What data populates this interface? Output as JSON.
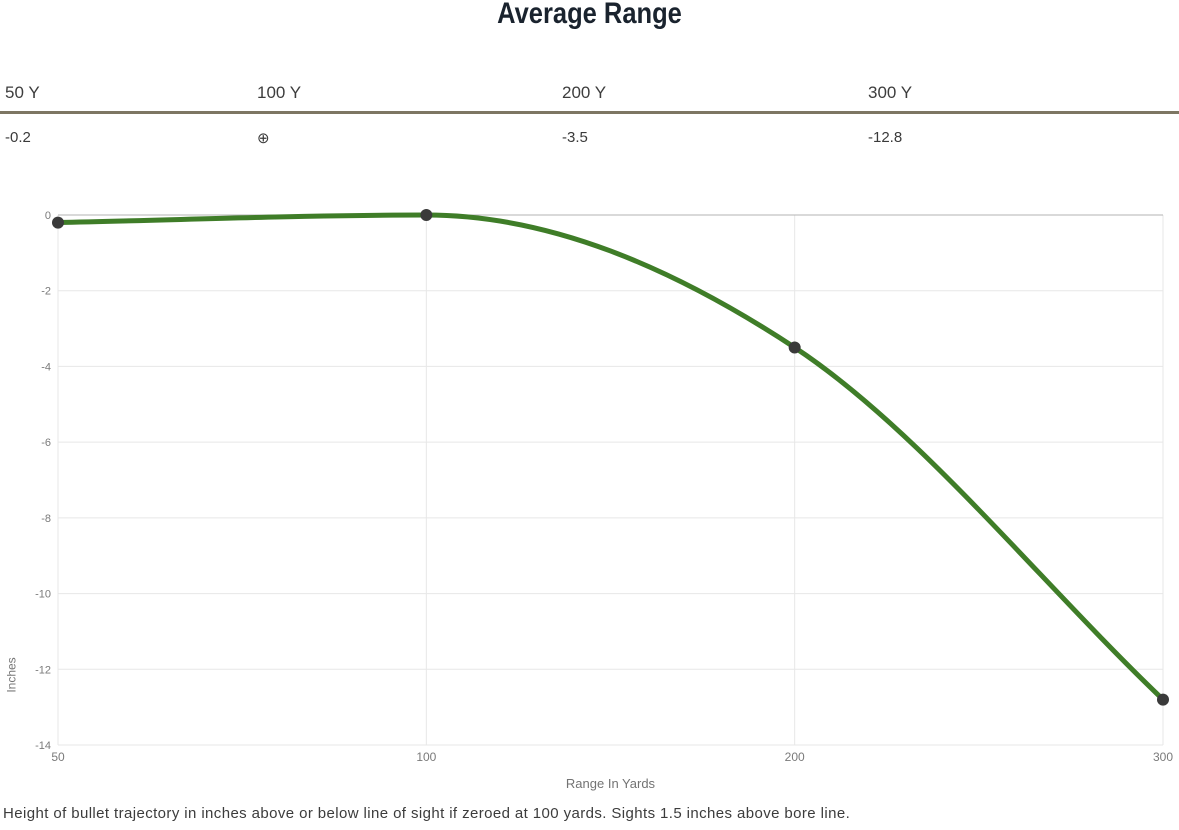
{
  "title": "Average Range",
  "summary_table": {
    "columns": [
      {
        "label": "50 Y",
        "value": "-0.2"
      },
      {
        "label": "100 Y",
        "value": "⊕"
      },
      {
        "label": "200 Y",
        "value": "-3.5"
      },
      {
        "label": "300 Y",
        "value": "-12.8"
      }
    ]
  },
  "chart_data": {
    "type": "line",
    "categories": [
      "50",
      "100",
      "200",
      "300"
    ],
    "x": [
      50,
      100,
      200,
      300
    ],
    "series": [
      {
        "name": "Average Range",
        "values": [
          -0.2,
          0,
          -3.5,
          -12.8
        ]
      }
    ],
    "title": "Average Range",
    "xlabel": "Range In Yards",
    "ylabel": "Inches",
    "ylim": [
      -14,
      0
    ],
    "yticks": [
      0,
      -2,
      -4,
      -6,
      -8,
      -10,
      -12,
      -14
    ],
    "grid": true,
    "legend": "none",
    "colors": {
      "line": "#3f7d28",
      "point": "#3a3a3a",
      "grid": "#e7e7e7",
      "zero_line": "#b3b3b3",
      "tick": "#7a7a7a"
    }
  },
  "footnote": "Height of bullet trajectory in inches above or below line of sight if zeroed at 100 yards. Sights 1.5 inches above bore line."
}
